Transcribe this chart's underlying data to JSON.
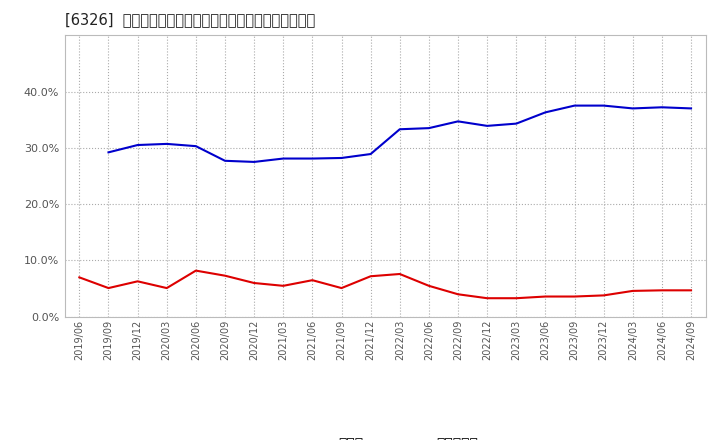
{
  "title": "[6326]  現預金、有利子負債の総資産に対する比率の推移",
  "legend_cash": "現預金",
  "legend_debt": "有利子負債",
  "cash_color": "#dd0000",
  "debt_color": "#0000cc",
  "background_color": "#ffffff",
  "plot_bg_color": "#ffffff",
  "grid_color": "#aaaaaa",
  "ylim": [
    0.0,
    0.5
  ],
  "yticks": [
    0.0,
    0.1,
    0.2,
    0.3,
    0.4
  ],
  "dates": [
    "2019/06",
    "2019/09",
    "2019/12",
    "2020/03",
    "2020/06",
    "2020/09",
    "2020/12",
    "2021/03",
    "2021/06",
    "2021/09",
    "2021/12",
    "2022/03",
    "2022/06",
    "2022/09",
    "2022/12",
    "2023/03",
    "2023/06",
    "2023/09",
    "2023/12",
    "2024/03",
    "2024/06",
    "2024/09"
  ],
  "cash": [
    0.07,
    0.051,
    0.063,
    0.051,
    0.082,
    0.073,
    0.06,
    0.055,
    0.065,
    0.051,
    0.072,
    0.076,
    0.055,
    0.04,
    0.033,
    0.033,
    0.036,
    0.036,
    0.038,
    0.046,
    0.047,
    0.047
  ],
  "debt": [
    null,
    0.292,
    0.305,
    0.307,
    0.303,
    0.277,
    0.275,
    0.281,
    0.281,
    0.282,
    0.289,
    0.333,
    0.335,
    0.347,
    0.339,
    0.343,
    0.363,
    0.375,
    0.375,
    0.37,
    0.372,
    0.37
  ]
}
